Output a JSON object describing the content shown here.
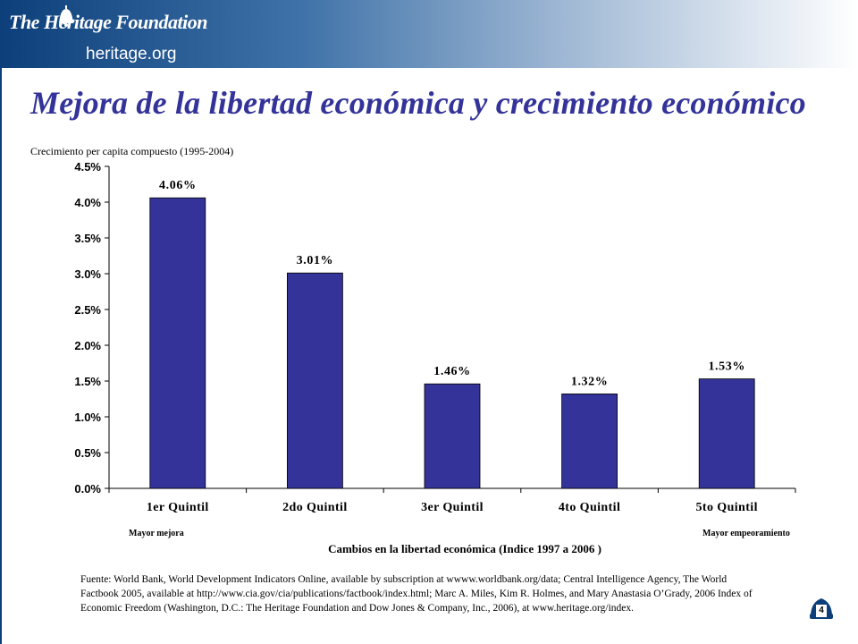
{
  "header": {
    "logo_text": "The Heritage Foundation",
    "logo_url": "heritage.org"
  },
  "title": "Mejora de la libertad económica y crecimiento económico",
  "footer": {
    "source": "Fuente: World Bank, World Development Indicators Online, available by subscription at wwww.worldbank.org/data; Central Intelligence Agency, The World Factbook 2005, available at http://www.cia.gov/cia/publications/factbook/index.html; Marc A. Miles, Kim R. Holmes, and Mary Anastasia O’Grady, 2006 Index of Economic Freedom (Washington, D.C.: The Heritage Foundation and Dow Jones & Company, Inc., 2006), at www.heritage.org/index.",
    "page_number": "4"
  },
  "colors": {
    "bar": "#333399",
    "title": "#333399",
    "banner_dark": "#0d3f7a"
  },
  "chart_data": {
    "type": "bar",
    "ylabel": "Crecimiento per capita compuesto (1995-2004)",
    "xlabel": "Cambios en la libertad económica (Indice 1997 a 2006 )",
    "categories": [
      "1er Quintil",
      "2do Quintil",
      "3er Quintil",
      "4to Quintil",
      "5to Quintil"
    ],
    "values": [
      4.06,
      3.01,
      1.46,
      1.32,
      1.53
    ],
    "data_labels": [
      "4.06%",
      "3.01%",
      "1.46%",
      "1.32%",
      "1.53%"
    ],
    "ylim": [
      0,
      4.5
    ],
    "yticks": [
      "0.0%",
      "0.5%",
      "1.0%",
      "1.5%",
      "2.0%",
      "2.5%",
      "3.0%",
      "3.5%",
      "4.0%",
      "4.5%"
    ],
    "x_annotation_left": "Mayor mejora",
    "x_annotation_right": "Mayor empeoramiento",
    "grid": false,
    "legend": "none"
  }
}
